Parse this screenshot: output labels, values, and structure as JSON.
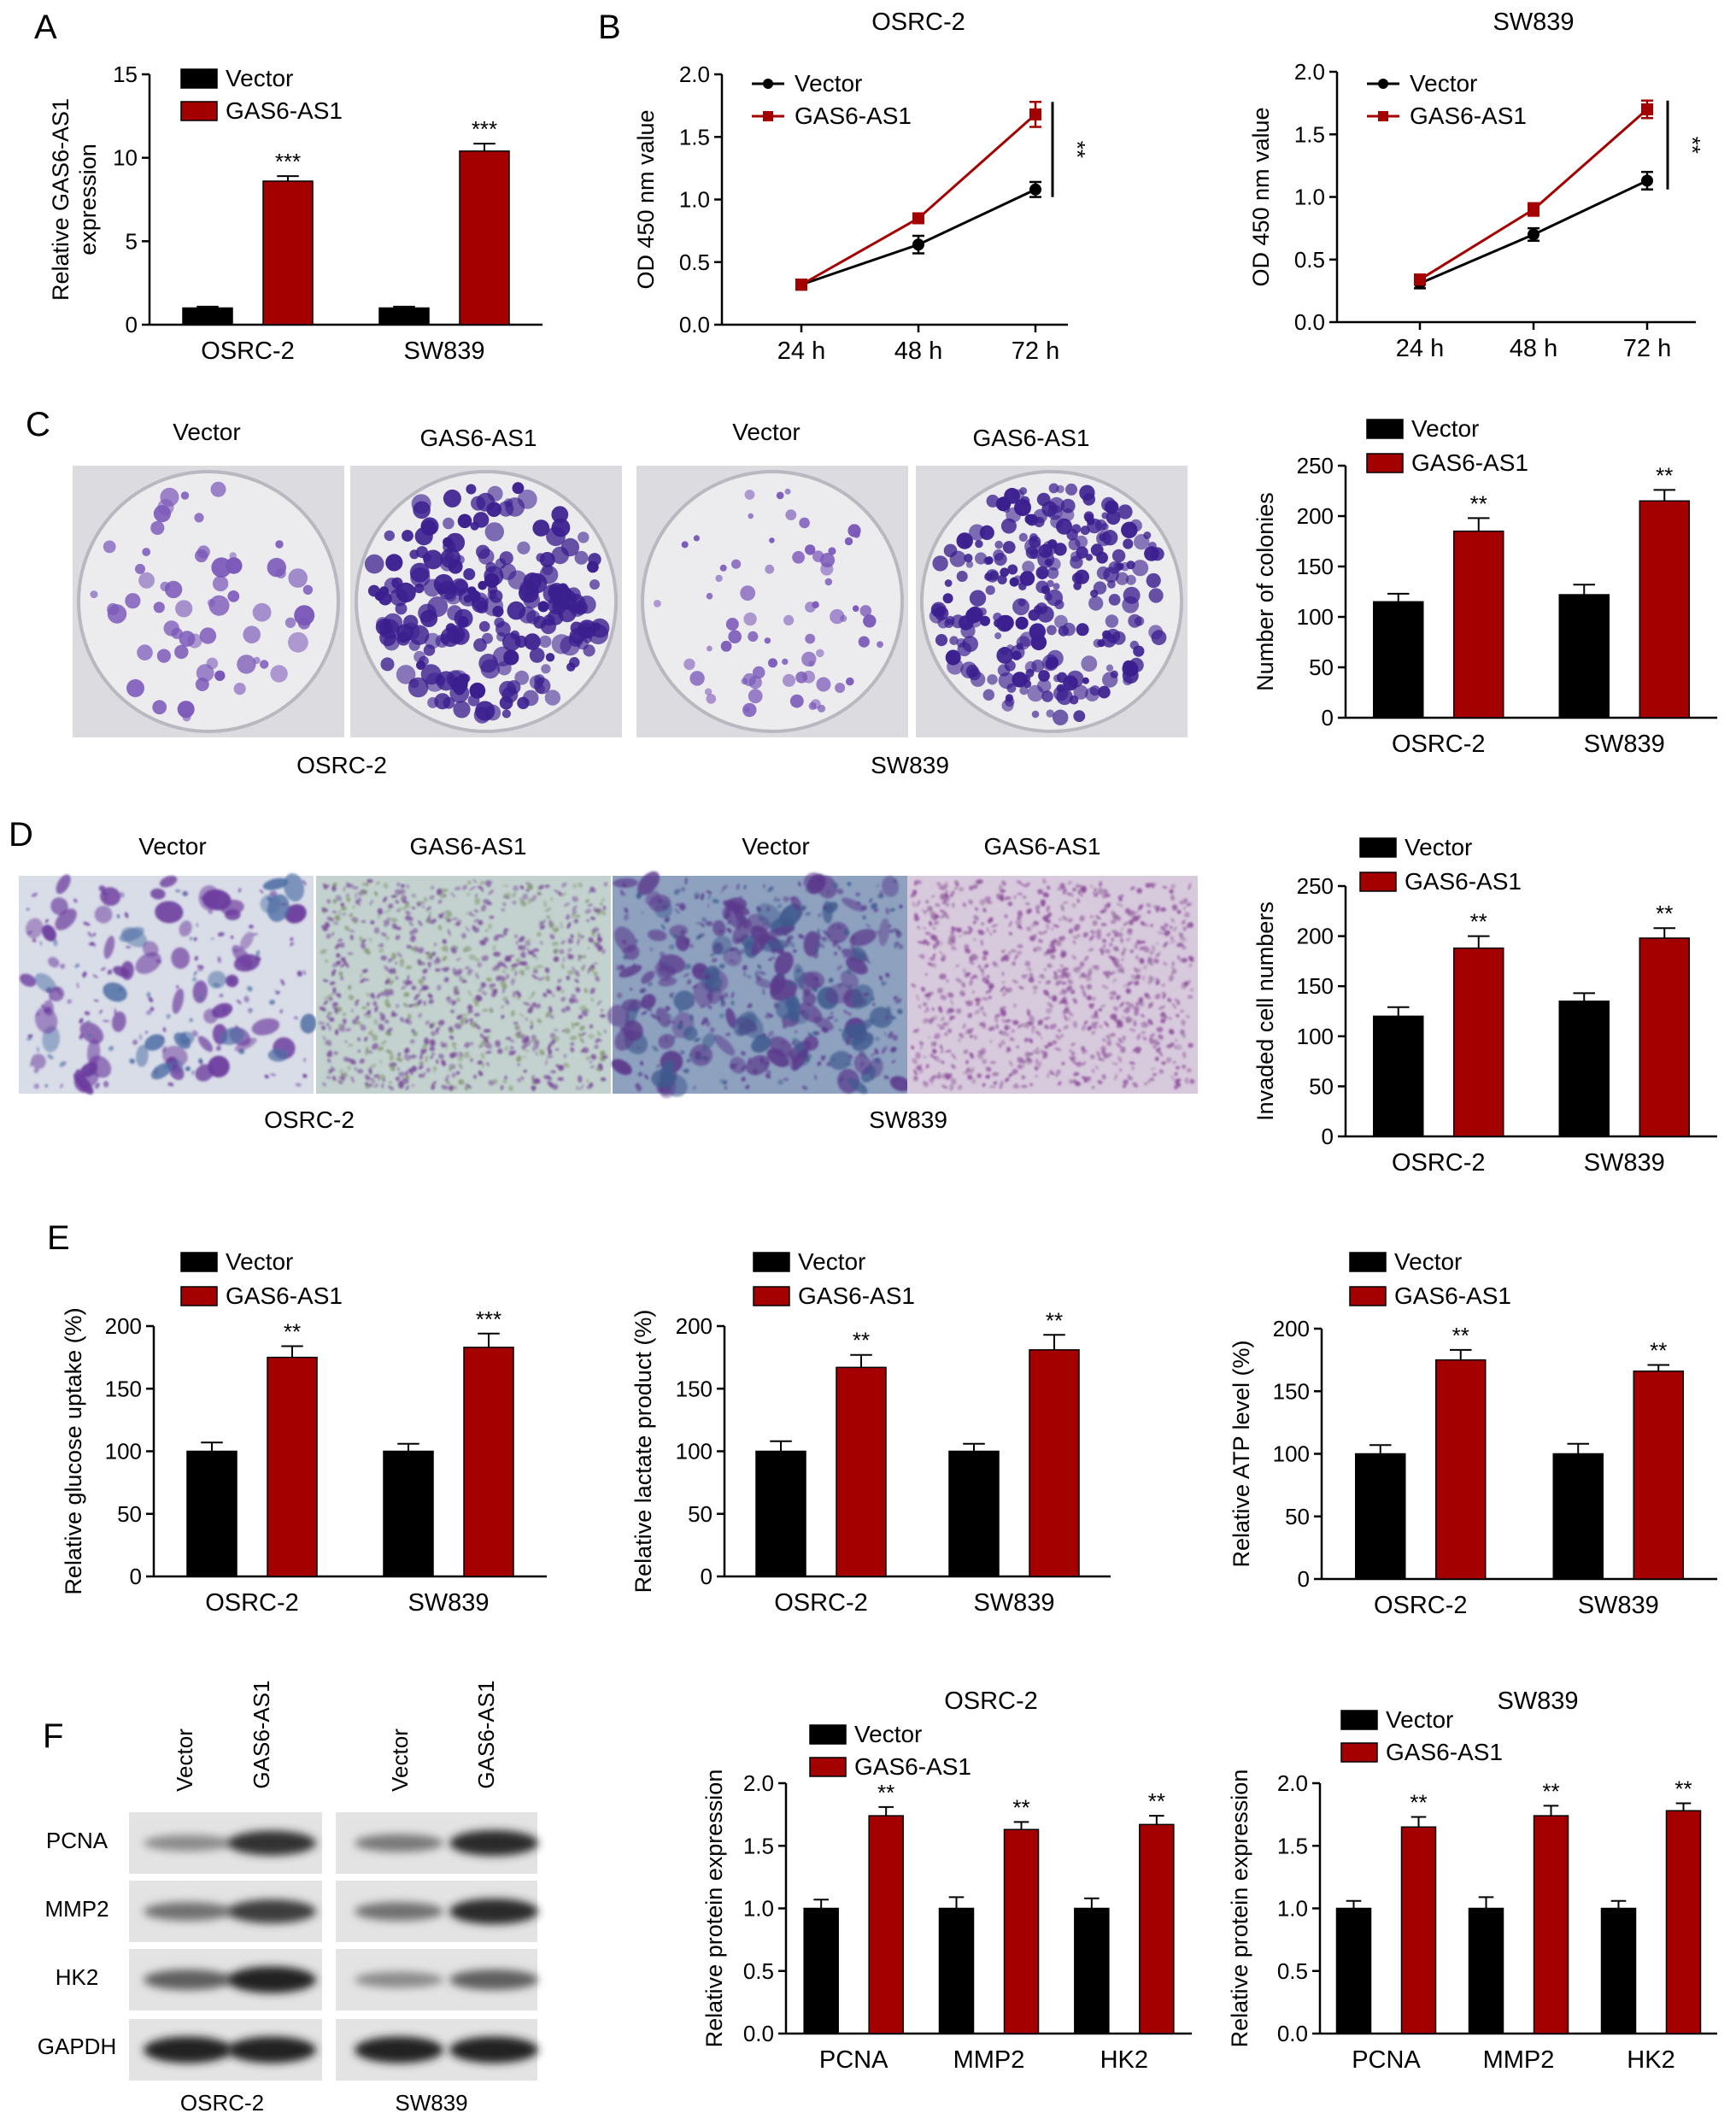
{
  "colors": {
    "vector": "#000000",
    "gas6": "#a50000",
    "axis": "#000000",
    "plate_bg": "#e9e7ea",
    "colony": "#5a3aa6",
    "transwell_bg": "#c7d2e2",
    "transwell_cell": "#6a3f95",
    "blot_bg": "#e3e3e3",
    "band": "#3a3a3a"
  },
  "legend": {
    "vector": "Vector",
    "gas6": "GAS6-AS1"
  },
  "panels": {
    "A": {
      "letter": "A",
      "chart_data": {
        "type": "bar",
        "ylabel": "Relative GAS6-AS1 expression",
        "ylim": [
          0,
          15
        ],
        "yticks": [
          0,
          5,
          10,
          15
        ],
        "categories": [
          "OSRC-2",
          "SW839"
        ],
        "series": [
          {
            "name": "Vector",
            "values": [
              1.0,
              1.0
            ],
            "errors": [
              0.08,
              0.08
            ]
          },
          {
            "name": "GAS6-AS1",
            "values": [
              8.6,
              10.4
            ],
            "errors": [
              0.3,
              0.45
            ]
          }
        ],
        "annotations": [
          "***",
          "***"
        ]
      }
    },
    "B": {
      "letter": "B",
      "charts": [
        {
          "title": "OSRC-2",
          "chart_data": {
            "type": "line",
            "ylabel": "OD 450 nm value",
            "ylim": [
              0,
              2.0
            ],
            "yticks": [
              "0.0",
              "0.5",
              "1.0",
              "1.5",
              "2.0"
            ],
            "x": [
              "24 h",
              "48 h",
              "72 h"
            ],
            "series": [
              {
                "name": "Vector",
                "values": [
                  0.32,
                  0.64,
                  1.08
                ],
                "errors": [
                  0.04,
                  0.07,
                  0.06
                ]
              },
              {
                "name": "GAS6-AS1",
                "values": [
                  0.32,
                  0.85,
                  1.68
                ],
                "errors": [
                  0.03,
                  0.03,
                  0.1
                ]
              }
            ],
            "significance": "**"
          }
        },
        {
          "title": "SW839",
          "chart_data": {
            "type": "line",
            "ylabel": "OD 450 nm value",
            "ylim": [
              0,
              2.0
            ],
            "yticks": [
              "0.0",
              "0.5",
              "1.0",
              "1.5",
              "2.0"
            ],
            "x": [
              "24 h",
              "48 h",
              "72 h"
            ],
            "series": [
              {
                "name": "Vector",
                "values": [
                  0.31,
                  0.7,
                  1.13
                ],
                "errors": [
                  0.04,
                  0.05,
                  0.07
                ]
              },
              {
                "name": "GAS6-AS1",
                "values": [
                  0.34,
                  0.9,
                  1.7
                ],
                "errors": [
                  0.04,
                  0.05,
                  0.07
                ]
              }
            ],
            "significance": "**"
          }
        }
      ]
    },
    "C": {
      "letter": "C",
      "image_labels": [
        "Vector",
        "GAS6-AS1",
        "Vector",
        "GAS6-AS1"
      ],
      "group_labels": [
        "OSRC-2",
        "SW839"
      ],
      "chart_data": {
        "type": "bar",
        "ylabel": "Number of colonies",
        "ylim": [
          0,
          250
        ],
        "yticks": [
          0,
          50,
          100,
          150,
          200,
          250
        ],
        "categories": [
          "OSRC-2",
          "SW839"
        ],
        "series": [
          {
            "name": "Vector",
            "values": [
              115,
              122
            ],
            "errors": [
              8,
              10
            ]
          },
          {
            "name": "GAS6-AS1",
            "values": [
              185,
              215
            ],
            "errors": [
              13,
              11
            ]
          }
        ],
        "annotations": [
          "**",
          "**"
        ]
      }
    },
    "D": {
      "letter": "D",
      "image_labels": [
        "Vector",
        "GAS6-AS1",
        "Vector",
        "GAS6-AS1"
      ],
      "group_labels": [
        "OSRC-2",
        "SW839"
      ],
      "chart_data": {
        "type": "bar",
        "ylabel": "Invaded cell numbers",
        "ylim": [
          0,
          250
        ],
        "yticks": [
          0,
          50,
          100,
          150,
          200,
          250
        ],
        "categories": [
          "OSRC-2",
          "SW839"
        ],
        "series": [
          {
            "name": "Vector",
            "values": [
              120,
              135
            ],
            "errors": [
              9,
              8
            ]
          },
          {
            "name": "GAS6-AS1",
            "values": [
              188,
              198
            ],
            "errors": [
              12,
              10
            ]
          }
        ],
        "annotations": [
          "**",
          "**"
        ]
      }
    },
    "E": {
      "letter": "E",
      "charts": [
        {
          "chart_data": {
            "type": "bar",
            "ylabel": "Relative glucose uptake (%)",
            "ylim": [
              0,
              200
            ],
            "yticks": [
              0,
              50,
              100,
              150,
              200
            ],
            "categories": [
              "OSRC-2",
              "SW839"
            ],
            "series": [
              {
                "name": "Vector",
                "values": [
                  100,
                  100
                ],
                "errors": [
                  7,
                  6
                ]
              },
              {
                "name": "GAS6-AS1",
                "values": [
                  175,
                  183
                ],
                "errors": [
                  9,
                  11
                ]
              }
            ],
            "annotations": [
              "**",
              "***"
            ]
          }
        },
        {
          "chart_data": {
            "type": "bar",
            "ylabel": "Relative lactate product (%)",
            "ylim": [
              0,
              200
            ],
            "yticks": [
              0,
              50,
              100,
              150,
              200
            ],
            "categories": [
              "OSRC-2",
              "SW839"
            ],
            "series": [
              {
                "name": "Vector",
                "values": [
                  100,
                  100
                ],
                "errors": [
                  8,
                  6
                ]
              },
              {
                "name": "GAS6-AS1",
                "values": [
                  167,
                  181
                ],
                "errors": [
                  10,
                  12
                ]
              }
            ],
            "annotations": [
              "**",
              "**"
            ]
          }
        },
        {
          "chart_data": {
            "type": "bar",
            "ylabel": "Relative ATP level (%)",
            "ylim": [
              0,
              200
            ],
            "yticks": [
              0,
              50,
              100,
              150,
              200
            ],
            "categories": [
              "OSRC-2",
              "SW839"
            ],
            "series": [
              {
                "name": "Vector",
                "values": [
                  100,
                  100
                ],
                "errors": [
                  7,
                  8
                ]
              },
              {
                "name": "GAS6-AS1",
                "values": [
                  175,
                  166
                ],
                "errors": [
                  8,
                  5
                ]
              }
            ],
            "annotations": [
              "**",
              "**"
            ]
          }
        }
      ]
    },
    "F": {
      "letter": "F",
      "blot": {
        "lane_labels": [
          "Vector",
          "GAS6-AS1",
          "Vector",
          "GAS6-AS1"
        ],
        "rows": [
          "PCNA",
          "MMP2",
          "HK2",
          "GAPDH"
        ],
        "group_labels": [
          "OSRC-2",
          "SW839"
        ],
        "band_intensity": [
          [
            0.35,
            0.85,
            0.45,
            0.9
          ],
          [
            0.5,
            0.8,
            0.5,
            0.9
          ],
          [
            0.6,
            0.95,
            0.35,
            0.6
          ],
          [
            0.95,
            0.95,
            0.95,
            0.95
          ]
        ]
      },
      "charts": [
        {
          "title": "OSRC-2",
          "chart_data": {
            "type": "bar",
            "ylabel": "Relative protein expression",
            "ylim": [
              0,
              2.0
            ],
            "yticks": [
              "0.0",
              "0.5",
              "1.0",
              "1.5",
              "2.0"
            ],
            "categories": [
              "PCNA",
              "MMP2",
              "HK2"
            ],
            "series": [
              {
                "name": "Vector",
                "values": [
                  1.0,
                  1.0,
                  1.0
                ],
                "errors": [
                  0.07,
                  0.09,
                  0.08
                ]
              },
              {
                "name": "GAS6-AS1",
                "values": [
                  1.74,
                  1.63,
                  1.67
                ],
                "errors": [
                  0.07,
                  0.06,
                  0.07
                ]
              }
            ],
            "annotations": [
              "**",
              "**",
              "**"
            ]
          }
        },
        {
          "title": "SW839",
          "chart_data": {
            "type": "bar",
            "ylabel": "Relative protein expression",
            "ylim": [
              0,
              2.0
            ],
            "yticks": [
              "0.0",
              "0.5",
              "1.0",
              "1.5",
              "2.0"
            ],
            "categories": [
              "PCNA",
              "MMP2",
              "HK2"
            ],
            "series": [
              {
                "name": "Vector",
                "values": [
                  1.0,
                  1.0,
                  1.0
                ],
                "errors": [
                  0.06,
                  0.09,
                  0.06
                ]
              },
              {
                "name": "GAS6-AS1",
                "values": [
                  1.65,
                  1.74,
                  1.78
                ],
                "errors": [
                  0.08,
                  0.08,
                  0.06
                ]
              }
            ],
            "annotations": [
              "**",
              "**",
              "**"
            ]
          }
        }
      ]
    }
  }
}
